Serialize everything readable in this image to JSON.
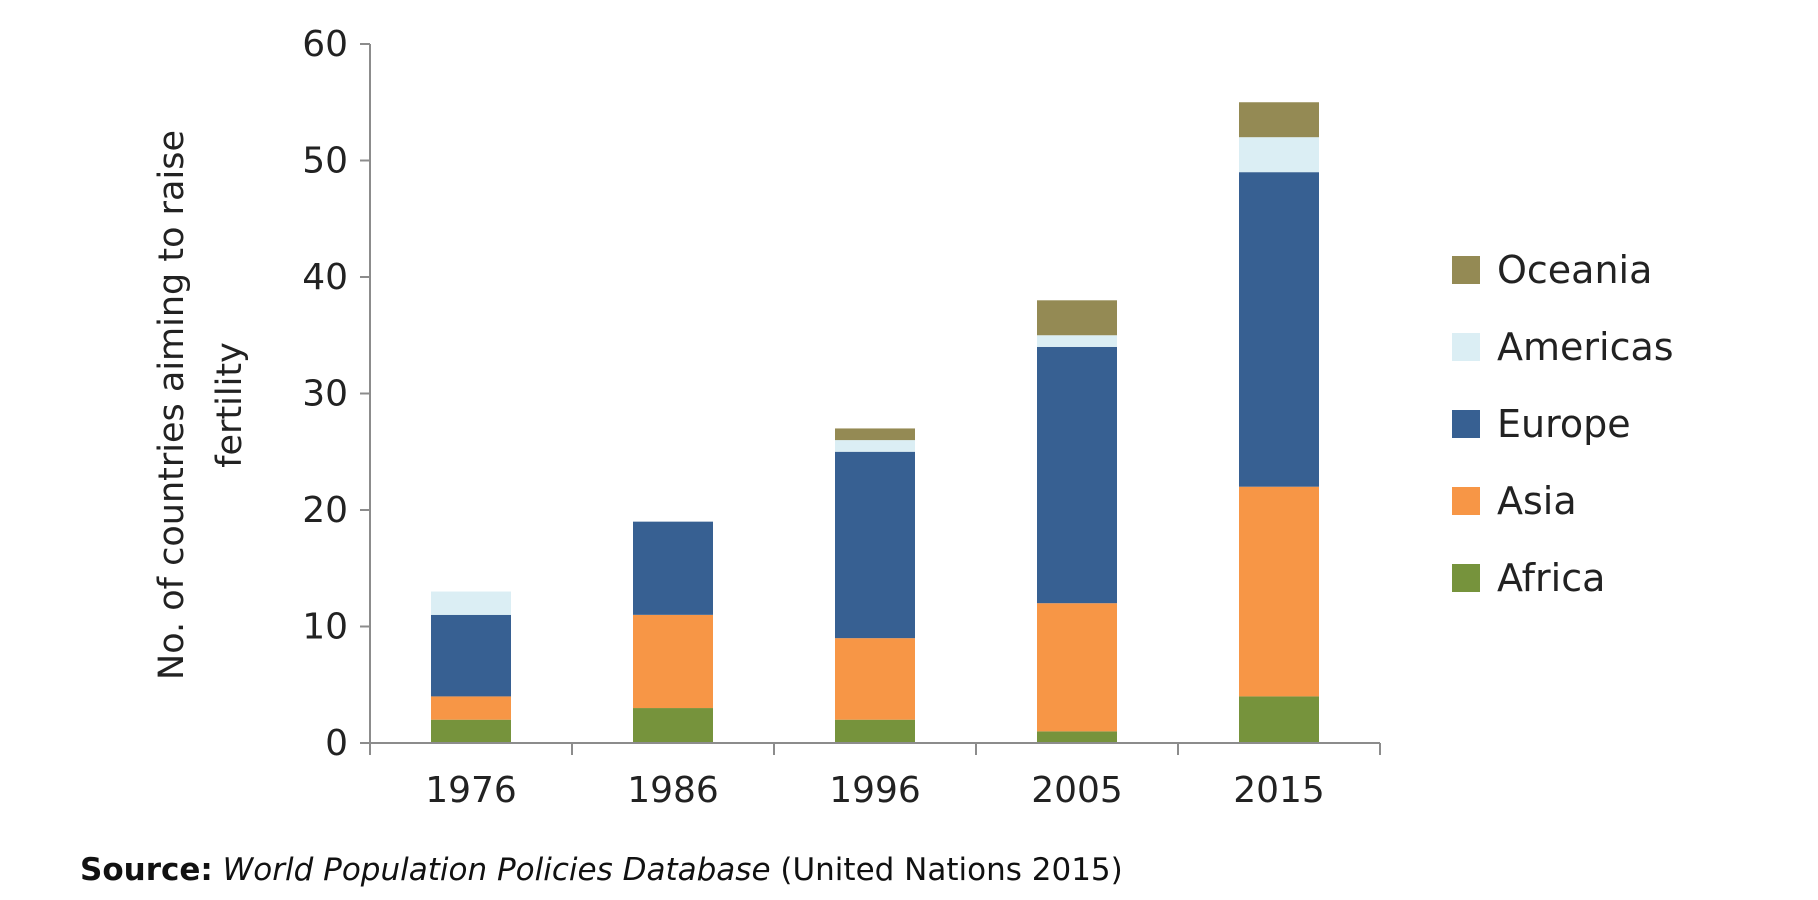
{
  "chart_data": {
    "type": "bar",
    "stacked": true,
    "title": "",
    "xlabel": "",
    "ylabel": [
      "No. of countries aiming to raise",
      "fertility"
    ],
    "ylim": [
      0,
      60
    ],
    "yticks": [
      0,
      10,
      20,
      30,
      40,
      50,
      60
    ],
    "grid": false,
    "legend_position": "right",
    "categories": [
      "1976",
      "1986",
      "1996",
      "2005",
      "2015"
    ],
    "series": [
      {
        "name": "Africa",
        "color": "#76933c",
        "values": [
          2,
          3,
          2,
          1,
          4
        ]
      },
      {
        "name": "Asia",
        "color": "#f79646",
        "values": [
          2,
          8,
          7,
          11,
          18
        ]
      },
      {
        "name": "Europe",
        "color": "#376092",
        "values": [
          7,
          8,
          16,
          22,
          27
        ]
      },
      {
        "name": "Americas",
        "color": "#dbeef4",
        "values": [
          2,
          0,
          1,
          1,
          3
        ]
      },
      {
        "name": "Oceania",
        "color": "#948a54",
        "values": [
          0,
          0,
          1,
          3,
          3
        ]
      }
    ],
    "legend_order": [
      "Oceania",
      "Americas",
      "Europe",
      "Asia",
      "Africa"
    ]
  },
  "source": {
    "prefix": "Source:",
    "database": "World Population Policies Database",
    "citation": "(United Nations 2015)"
  }
}
